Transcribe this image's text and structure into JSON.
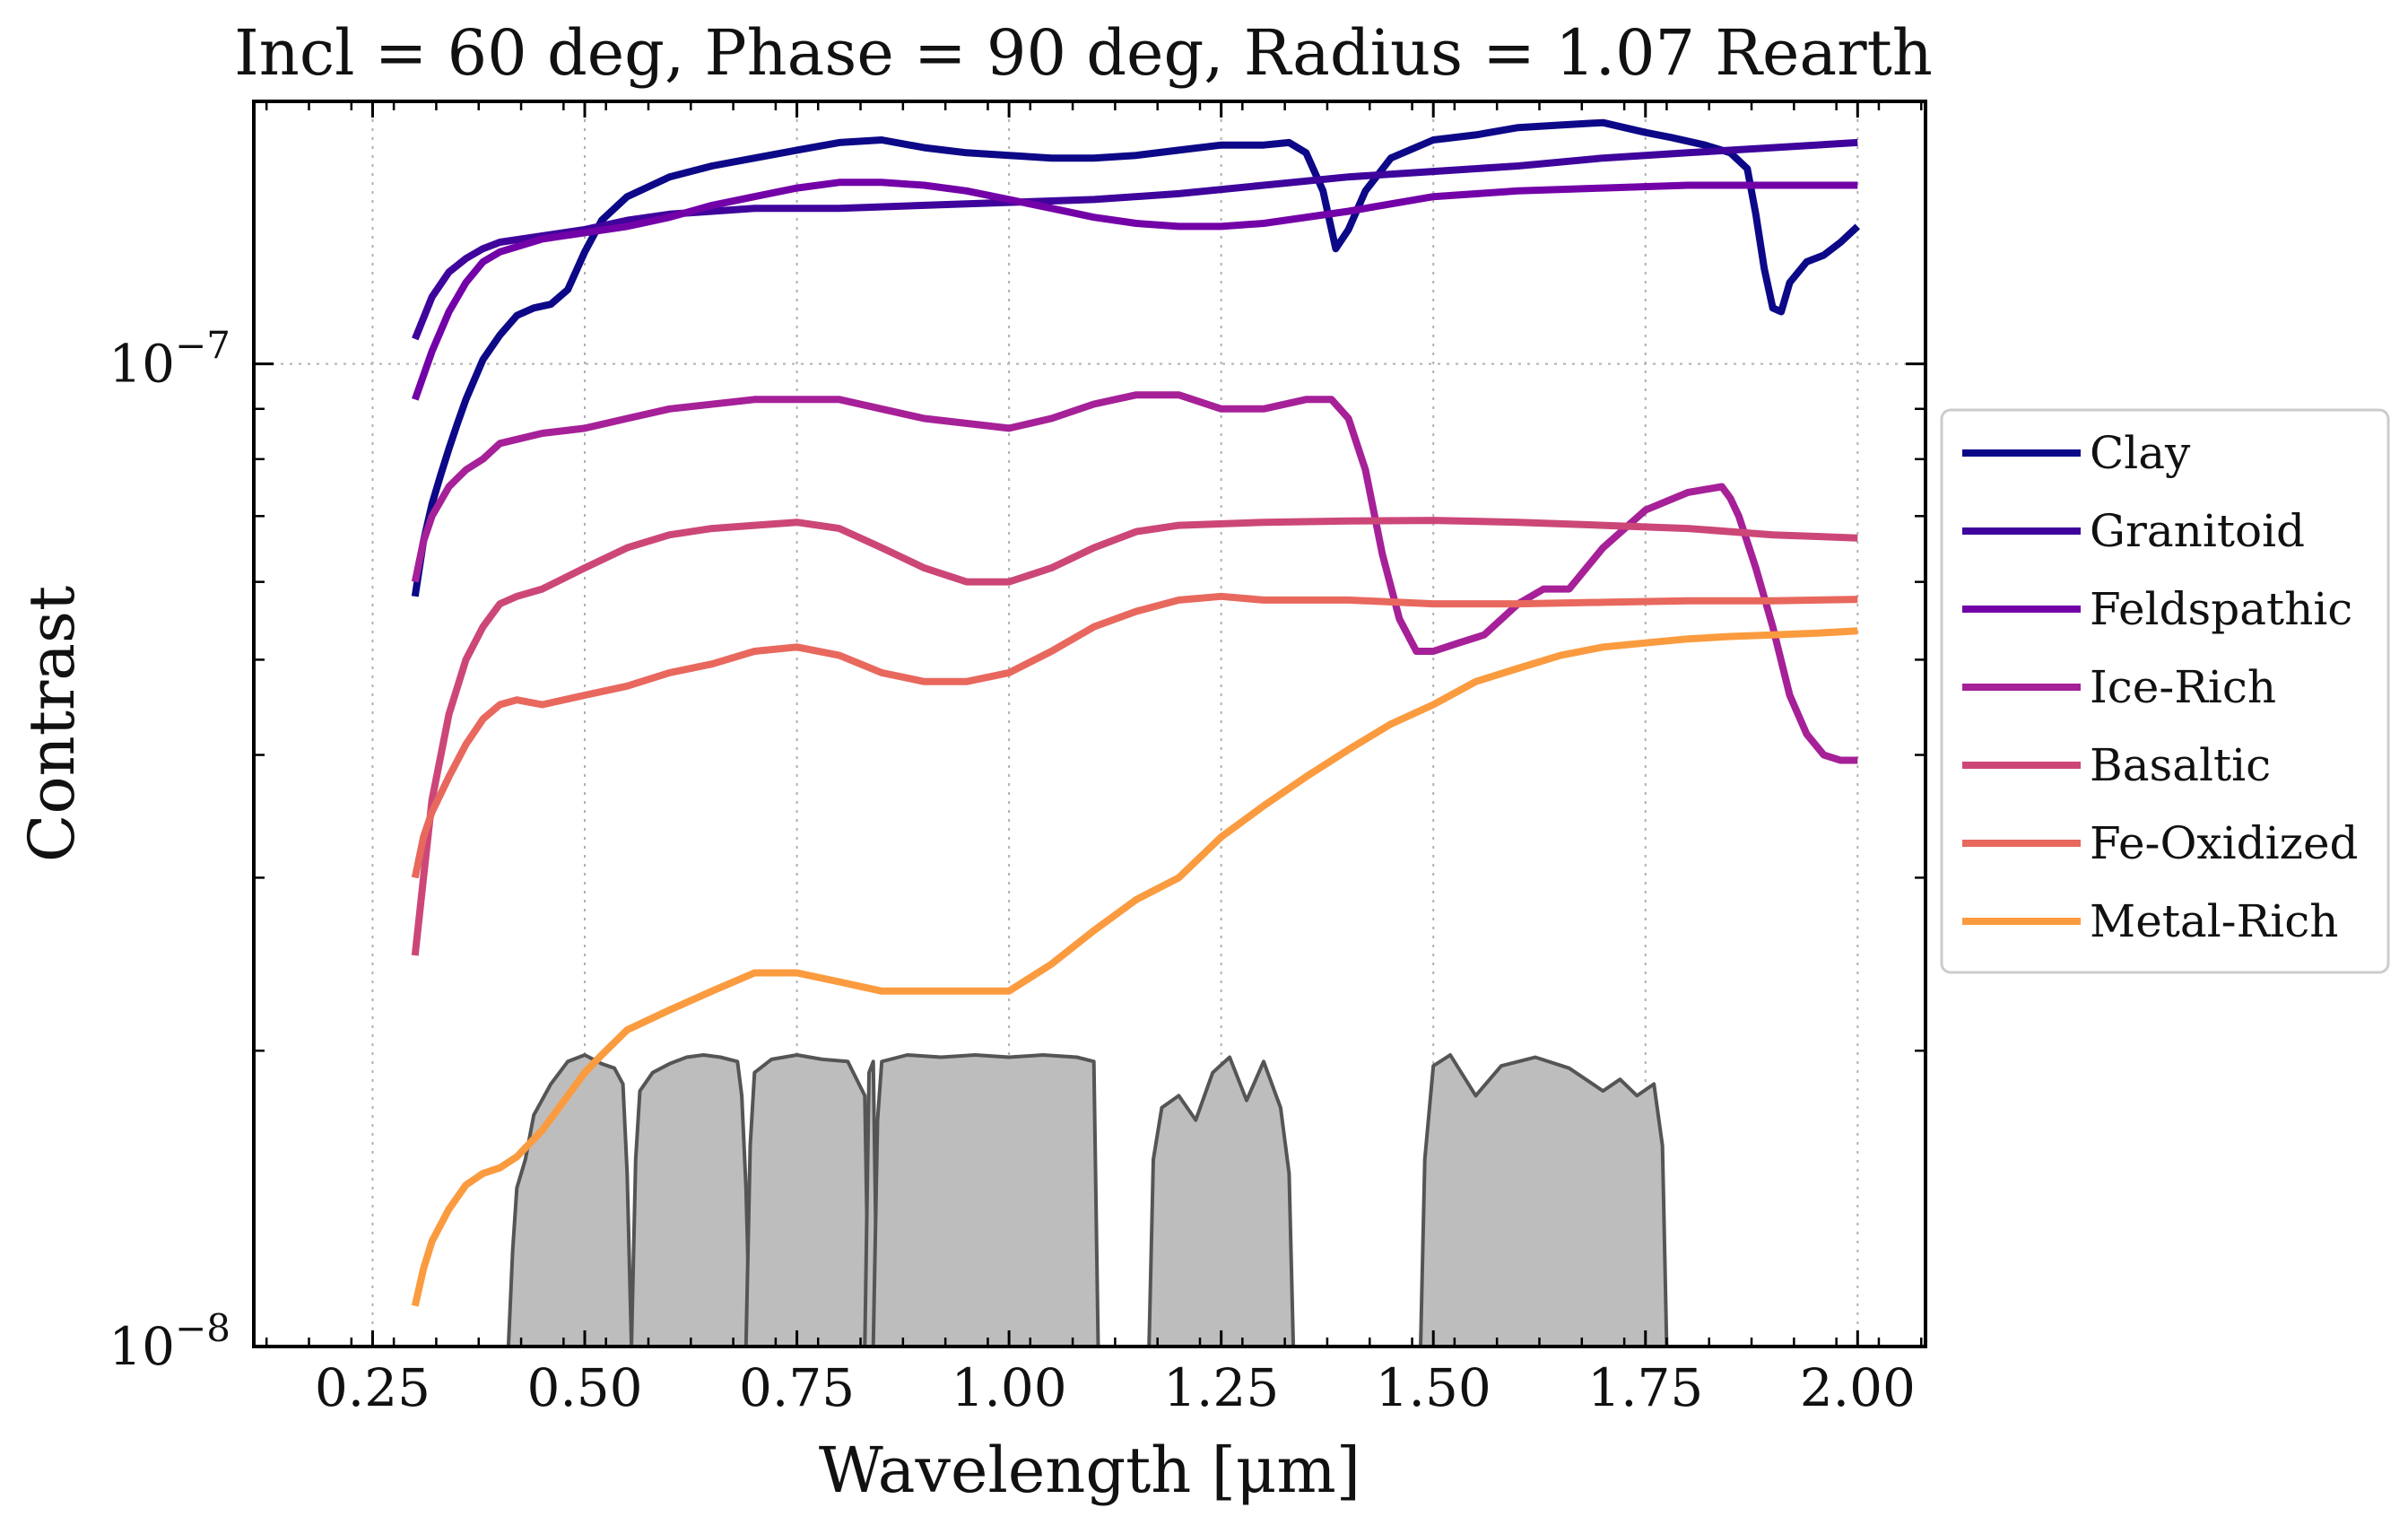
{
  "chart_data": {
    "type": "line",
    "title": "Incl = 60 deg, Phase = 90 deg, Radius = 1.07 Rearth",
    "xlabel": "Wavelength [μm]",
    "ylabel": "Contrast",
    "xlim": [
      0.11,
      2.08
    ],
    "ylim": [
      1e-08,
      1.85e-07
    ],
    "yscale": "log",
    "x_ticks": [
      {
        "value": 0.25,
        "label": "0.25"
      },
      {
        "value": 0.5,
        "label": "0.50"
      },
      {
        "value": 0.75,
        "label": "0.75"
      },
      {
        "value": 1.0,
        "label": "1.00"
      },
      {
        "value": 1.25,
        "label": "1.25"
      },
      {
        "value": 1.5,
        "label": "1.50"
      },
      {
        "value": 1.75,
        "label": "1.75"
      },
      {
        "value": 2.0,
        "label": "2.00"
      }
    ],
    "y_ticks": [
      {
        "value": 1e-08,
        "base": "10",
        "exp": "−8"
      },
      {
        "value": 1e-07,
        "base": "10",
        "exp": "−7"
      }
    ],
    "grid": true,
    "legend_position": "right, outside plot",
    "series": [
      {
        "name": "Clay",
        "color": "#0d0887",
        "x": [
          0.3,
          0.31,
          0.32,
          0.33,
          0.34,
          0.35,
          0.36,
          0.38,
          0.4,
          0.42,
          0.44,
          0.46,
          0.48,
          0.5,
          0.52,
          0.55,
          0.6,
          0.65,
          0.7,
          0.75,
          0.8,
          0.85,
          0.9,
          0.95,
          1.0,
          1.05,
          1.1,
          1.15,
          1.2,
          1.25,
          1.3,
          1.33,
          1.35,
          1.37,
          1.385,
          1.4,
          1.42,
          1.45,
          1.5,
          1.55,
          1.6,
          1.65,
          1.7,
          1.75,
          1.78,
          1.82,
          1.85,
          1.87,
          1.88,
          1.89,
          1.9,
          1.91,
          1.92,
          1.94,
          1.96,
          1.98,
          2.0
        ],
        "y": [
          5.8e-08,
          6.6e-08,
          7.2e-08,
          7.7e-08,
          8.2e-08,
          8.7e-08,
          9.2e-08,
          1.01e-07,
          1.07e-07,
          1.12e-07,
          1.14e-07,
          1.15e-07,
          1.19e-07,
          1.3e-07,
          1.4e-07,
          1.48e-07,
          1.55e-07,
          1.59e-07,
          1.62e-07,
          1.65e-07,
          1.68e-07,
          1.69e-07,
          1.66e-07,
          1.64e-07,
          1.63e-07,
          1.62e-07,
          1.62e-07,
          1.63e-07,
          1.65e-07,
          1.67e-07,
          1.67e-07,
          1.68e-07,
          1.64e-07,
          1.5e-07,
          1.31e-07,
          1.37e-07,
          1.5e-07,
          1.62e-07,
          1.69e-07,
          1.71e-07,
          1.74e-07,
          1.75e-07,
          1.76e-07,
          1.72e-07,
          1.7e-07,
          1.67e-07,
          1.64e-07,
          1.58e-07,
          1.42e-07,
          1.25e-07,
          1.14e-07,
          1.13e-07,
          1.21e-07,
          1.27e-07,
          1.29e-07,
          1.33e-07,
          1.38e-07
        ]
      },
      {
        "name": "Granitoid",
        "color": "#3e049c",
        "x": [
          0.3,
          0.32,
          0.34,
          0.36,
          0.38,
          0.4,
          0.45,
          0.5,
          0.55,
          0.6,
          0.7,
          0.8,
          0.9,
          1.0,
          1.1,
          1.2,
          1.3,
          1.4,
          1.5,
          1.6,
          1.7,
          1.8,
          1.9,
          2.0
        ],
        "y": [
          1.06e-07,
          1.17e-07,
          1.24e-07,
          1.28e-07,
          1.31e-07,
          1.33e-07,
          1.35e-07,
          1.37e-07,
          1.4e-07,
          1.42e-07,
          1.44e-07,
          1.44e-07,
          1.45e-07,
          1.46e-07,
          1.47e-07,
          1.49e-07,
          1.52e-07,
          1.55e-07,
          1.57e-07,
          1.59e-07,
          1.62e-07,
          1.64e-07,
          1.66e-07,
          1.68e-07
        ]
      },
      {
        "name": "Feldspathic",
        "color": "#7301a8",
        "x": [
          0.3,
          0.32,
          0.34,
          0.36,
          0.38,
          0.4,
          0.45,
          0.5,
          0.55,
          0.6,
          0.65,
          0.7,
          0.75,
          0.8,
          0.85,
          0.9,
          0.95,
          1.0,
          1.05,
          1.1,
          1.15,
          1.2,
          1.25,
          1.3,
          1.4,
          1.5,
          1.6,
          1.7,
          1.8,
          1.9,
          2.0
        ],
        "y": [
          9.2e-08,
          1.03e-07,
          1.13e-07,
          1.21e-07,
          1.27e-07,
          1.3e-07,
          1.34e-07,
          1.36e-07,
          1.38e-07,
          1.41e-07,
          1.45e-07,
          1.48e-07,
          1.51e-07,
          1.53e-07,
          1.53e-07,
          1.52e-07,
          1.5e-07,
          1.47e-07,
          1.44e-07,
          1.41e-07,
          1.39e-07,
          1.38e-07,
          1.38e-07,
          1.39e-07,
          1.43e-07,
          1.48e-07,
          1.5e-07,
          1.51e-07,
          1.52e-07,
          1.52e-07,
          1.52e-07
        ]
      },
      {
        "name": "Ice-Rich",
        "color": "#a62098",
        "x": [
          0.3,
          0.31,
          0.32,
          0.34,
          0.36,
          0.38,
          0.4,
          0.45,
          0.5,
          0.55,
          0.6,
          0.7,
          0.8,
          0.9,
          1.0,
          1.05,
          1.1,
          1.15,
          1.2,
          1.25,
          1.3,
          1.35,
          1.38,
          1.4,
          1.42,
          1.44,
          1.46,
          1.48,
          1.5,
          1.53,
          1.56,
          1.6,
          1.63,
          1.66,
          1.7,
          1.75,
          1.8,
          1.82,
          1.84,
          1.85,
          1.86,
          1.88,
          1.9,
          1.92,
          1.94,
          1.96,
          1.98,
          2.0
        ],
        "y": [
          6e-08,
          6.6e-08,
          7e-08,
          7.5e-08,
          7.8e-08,
          8e-08,
          8.3e-08,
          8.5e-08,
          8.6e-08,
          8.8e-08,
          9e-08,
          9.2e-08,
          9.2e-08,
          8.8e-08,
          8.6e-08,
          8.8e-08,
          9.1e-08,
          9.3e-08,
          9.3e-08,
          9e-08,
          9e-08,
          9.2e-08,
          9.2e-08,
          8.8e-08,
          7.8e-08,
          6.4e-08,
          5.5e-08,
          5.1e-08,
          5.1e-08,
          5.2e-08,
          5.3e-08,
          5.7e-08,
          5.9e-08,
          5.9e-08,
          6.5e-08,
          7.1e-08,
          7.4e-08,
          7.45e-08,
          7.5e-08,
          7.3e-08,
          7e-08,
          6.2e-08,
          5.4e-08,
          4.6e-08,
          4.2e-08,
          4e-08,
          3.95e-08,
          3.95e-08
        ]
      },
      {
        "name": "Basaltic",
        "color": "#cc4778",
        "x": [
          0.3,
          0.31,
          0.32,
          0.34,
          0.36,
          0.38,
          0.4,
          0.42,
          0.45,
          0.5,
          0.55,
          0.6,
          0.65,
          0.7,
          0.75,
          0.8,
          0.85,
          0.9,
          0.95,
          1.0,
          1.05,
          1.1,
          1.15,
          1.2,
          1.3,
          1.4,
          1.5,
          1.6,
          1.7,
          1.8,
          1.9,
          2.0
        ],
        "y": [
          2.5e-08,
          3e-08,
          3.6e-08,
          4.4e-08,
          5e-08,
          5.4e-08,
          5.7e-08,
          5.8e-08,
          5.9e-08,
          6.2e-08,
          6.5e-08,
          6.7e-08,
          6.8e-08,
          6.85e-08,
          6.9e-08,
          6.8e-08,
          6.5e-08,
          6.2e-08,
          6e-08,
          6e-08,
          6.2e-08,
          6.5e-08,
          6.75e-08,
          6.85e-08,
          6.9e-08,
          6.92e-08,
          6.93e-08,
          6.9e-08,
          6.85e-08,
          6.8e-08,
          6.7e-08,
          6.65e-08
        ]
      },
      {
        "name": "Fe-Oxidized",
        "color": "#e8685e",
        "x": [
          0.3,
          0.31,
          0.32,
          0.34,
          0.36,
          0.38,
          0.4,
          0.42,
          0.45,
          0.5,
          0.55,
          0.6,
          0.65,
          0.7,
          0.75,
          0.8,
          0.85,
          0.9,
          0.95,
          1.0,
          1.05,
          1.1,
          1.15,
          1.2,
          1.25,
          1.3,
          1.4,
          1.5,
          1.6,
          1.7,
          1.8,
          1.9,
          2.0
        ],
        "y": [
          3e-08,
          3.3e-08,
          3.5e-08,
          3.8e-08,
          4.1e-08,
          4.35e-08,
          4.5e-08,
          4.55e-08,
          4.5e-08,
          4.6e-08,
          4.7e-08,
          4.85e-08,
          4.95e-08,
          5.1e-08,
          5.15e-08,
          5.05e-08,
          4.85e-08,
          4.75e-08,
          4.75e-08,
          4.85e-08,
          5.1e-08,
          5.4e-08,
          5.6e-08,
          5.75e-08,
          5.8e-08,
          5.75e-08,
          5.75e-08,
          5.7e-08,
          5.7e-08,
          5.72e-08,
          5.74e-08,
          5.74e-08,
          5.76e-08
        ]
      },
      {
        "name": "Metal-Rich",
        "color": "#fb9b3f",
        "x": [
          0.3,
          0.31,
          0.32,
          0.34,
          0.36,
          0.38,
          0.4,
          0.42,
          0.45,
          0.48,
          0.5,
          0.52,
          0.55,
          0.6,
          0.65,
          0.7,
          0.75,
          0.8,
          0.85,
          0.9,
          0.95,
          1.0,
          1.05,
          1.1,
          1.15,
          1.2,
          1.25,
          1.3,
          1.35,
          1.4,
          1.45,
          1.5,
          1.55,
          1.6,
          1.65,
          1.7,
          1.75,
          1.8,
          1.85,
          1.9,
          1.95,
          2.0
        ],
        "y": [
          1.1e-08,
          1.2e-08,
          1.28e-08,
          1.38e-08,
          1.46e-08,
          1.5e-08,
          1.52e-08,
          1.56e-08,
          1.66e-08,
          1.8e-08,
          1.9e-08,
          1.98e-08,
          2.1e-08,
          2.2e-08,
          2.3e-08,
          2.4e-08,
          2.4e-08,
          2.35e-08,
          2.3e-08,
          2.3e-08,
          2.3e-08,
          2.3e-08,
          2.45e-08,
          2.65e-08,
          2.85e-08,
          3e-08,
          3.3e-08,
          3.55e-08,
          3.8e-08,
          4.05e-08,
          4.3e-08,
          4.5e-08,
          4.75e-08,
          4.9e-08,
          5.05e-08,
          5.15e-08,
          5.2e-08,
          5.25e-08,
          5.28e-08,
          5.3e-08,
          5.32e-08,
          5.35e-08
        ]
      }
    ],
    "filter_bands": [
      {
        "lo": 0.41,
        "hi": 0.555,
        "x": [
          0.41,
          0.415,
          0.42,
          0.43,
          0.44,
          0.46,
          0.48,
          0.5,
          0.52,
          0.535,
          0.545,
          0.55,
          0.555
        ],
        "y": [
          1e-08,
          1.25e-08,
          1.45e-08,
          1.55e-08,
          1.72e-08,
          1.85e-08,
          1.95e-08,
          1.98e-08,
          1.94e-08,
          1.92e-08,
          1.85e-08,
          1.5e-08,
          1e-08
        ]
      },
      {
        "lo": 0.555,
        "hi": 0.695,
        "x": [
          0.555,
          0.56,
          0.565,
          0.58,
          0.6,
          0.62,
          0.64,
          0.66,
          0.68,
          0.685,
          0.69,
          0.695
        ],
        "y": [
          1e-08,
          1.55e-08,
          1.82e-08,
          1.9e-08,
          1.94e-08,
          1.97e-08,
          1.98e-08,
          1.97e-08,
          1.95e-08,
          1.8e-08,
          1.45e-08,
          1e-08
        ]
      },
      {
        "lo": 0.69,
        "hi": 0.835,
        "x": [
          0.69,
          0.695,
          0.7,
          0.72,
          0.75,
          0.78,
          0.81,
          0.83,
          0.835
        ],
        "y": [
          1e-08,
          1.6e-08,
          1.9e-08,
          1.96e-08,
          1.98e-08,
          1.96e-08,
          1.95e-08,
          1.8e-08,
          1e-08
        ]
      },
      {
        "lo": 0.83,
        "hi": 0.845,
        "x": [
          0.83,
          0.835,
          0.84,
          0.845
        ],
        "y": [
          1e-08,
          1.9e-08,
          1.95e-08,
          1e-08
        ]
      },
      {
        "lo": 0.84,
        "hi": 1.105,
        "x": [
          0.84,
          0.845,
          0.85,
          0.88,
          0.92,
          0.96,
          1.0,
          1.04,
          1.08,
          1.1,
          1.105
        ],
        "y": [
          1e-08,
          1.7e-08,
          1.95e-08,
          1.98e-08,
          1.97e-08,
          1.98e-08,
          1.97e-08,
          1.98e-08,
          1.97e-08,
          1.95e-08,
          1e-08
        ]
      },
      {
        "lo": 1.165,
        "hi": 1.335,
        "x": [
          1.165,
          1.17,
          1.18,
          1.2,
          1.22,
          1.24,
          1.26,
          1.28,
          1.3,
          1.32,
          1.33,
          1.335
        ],
        "y": [
          1e-08,
          1.55e-08,
          1.75e-08,
          1.8e-08,
          1.7e-08,
          1.9e-08,
          1.97e-08,
          1.78e-08,
          1.95e-08,
          1.75e-08,
          1.5e-08,
          1e-08
        ]
      },
      {
        "lo": 1.485,
        "hi": 1.775,
        "x": [
          1.485,
          1.49,
          1.5,
          1.52,
          1.55,
          1.58,
          1.62,
          1.66,
          1.7,
          1.72,
          1.74,
          1.76,
          1.77,
          1.775
        ],
        "y": [
          1e-08,
          1.55e-08,
          1.93e-08,
          1.98e-08,
          1.8e-08,
          1.93e-08,
          1.97e-08,
          1.92e-08,
          1.82e-08,
          1.87e-08,
          1.8e-08,
          1.85e-08,
          1.6e-08,
          1e-08
        ]
      }
    ]
  }
}
